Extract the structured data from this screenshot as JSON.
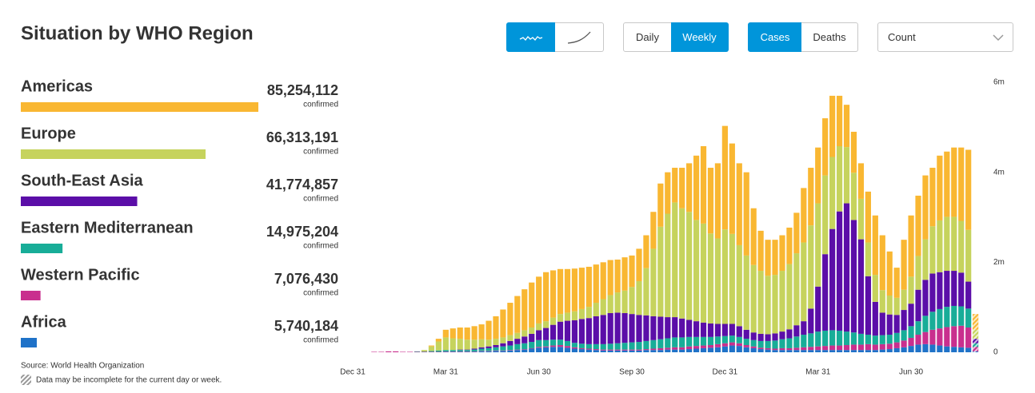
{
  "header": {
    "title": "Situation by WHO Region"
  },
  "controls": {
    "frequency": [
      "Daily",
      "Weekly"
    ],
    "frequency_selected": 1,
    "measure": [
      "Cases",
      "Deaths"
    ],
    "measure_selected": 0,
    "scale": "Count"
  },
  "footer": {
    "source": "Source: World Health Organization",
    "note": "Data may be incomplete for the current day or week."
  },
  "chart_data": {
    "type": "stacked-bar",
    "total_caption": "confirmed",
    "categories": [
      "Dec 31",
      null,
      null,
      null,
      null,
      null,
      null,
      null,
      null,
      null,
      null,
      null,
      null,
      "Mar 31",
      null,
      null,
      null,
      null,
      null,
      null,
      null,
      null,
      null,
      null,
      null,
      null,
      "Jun 30",
      null,
      null,
      null,
      null,
      null,
      null,
      null,
      null,
      null,
      null,
      null,
      null,
      "Sep 30",
      null,
      null,
      null,
      null,
      null,
      null,
      null,
      null,
      null,
      null,
      null,
      null,
      "Dec 31",
      null,
      null,
      null,
      null,
      null,
      null,
      null,
      null,
      null,
      null,
      null,
      null,
      "Mar 31",
      null,
      null,
      null,
      null,
      null,
      null,
      null,
      null,
      null,
      null,
      null,
      null,
      "Jun 30",
      null,
      null,
      null,
      null,
      null,
      null,
      null,
      null,
      null
    ],
    "ylim": [
      0,
      6
    ],
    "yticks": [
      0,
      {
        "value": 2,
        "label": "2m"
      },
      {
        "value": 4,
        "label": "4m"
      },
      {
        "value": 6,
        "label": "6m"
      }
    ],
    "series": [
      {
        "name": "Americas",
        "color": "#f9b732",
        "total": 85254112,
        "total_label": "85,254,112",
        "values": [
          0,
          0,
          0,
          0,
          0,
          0,
          0,
          0,
          0,
          0,
          0,
          0.02,
          0.06,
          0.17,
          0.22,
          0.25,
          0.27,
          0.3,
          0.33,
          0.42,
          0.5,
          0.62,
          0.72,
          0.82,
          0.91,
          1.0,
          1.04,
          1.09,
          1.05,
          1.0,
          0.97,
          0.95,
          0.92,
          0.89,
          0.85,
          0.82,
          0.78,
          0.73,
          0.74,
          0.7,
          0.72,
          0.73,
          0.82,
          0.96,
          0.92,
          0.77,
          0.9,
          1.08,
          1.43,
          1.72,
          1.46,
          1.67,
          2.3,
          2.01,
          1.82,
          1.85,
          1.26,
          0.89,
          0.8,
          0.78,
          0.79,
          0.81,
          0.9,
          1.21,
          1.28,
          1.24,
          1.27,
          1.36,
          1.12,
          0.94,
          0.91,
          0.79,
          1.13,
          1.32,
          1.22,
          0.98,
          0.67,
          1.11,
          1.36,
          1.34,
          1.42,
          1.3,
          1.44,
          1.45,
          1.54,
          1.63,
          1.78,
          0.35
        ]
      },
      {
        "name": "Europe",
        "color": "#c6d35d",
        "total": 66313191,
        "total_label": "66,313,191",
        "values": [
          0,
          0,
          0,
          0,
          0,
          0,
          0,
          0,
          0,
          0,
          0.03,
          0.1,
          0.2,
          0.28,
          0.26,
          0.24,
          0.22,
          0.2,
          0.18,
          0.15,
          0.14,
          0.13,
          0.13,
          0.13,
          0.14,
          0.14,
          0.15,
          0.15,
          0.16,
          0.17,
          0.18,
          0.2,
          0.22,
          0.25,
          0.3,
          0.35,
          0.4,
          0.45,
          0.5,
          0.6,
          0.75,
          1.05,
          1.5,
          2.0,
          2.3,
          2.55,
          2.45,
          2.4,
          2.25,
          2.2,
          2.0,
          1.9,
          2.1,
          2.0,
          1.8,
          1.65,
          1.5,
          1.4,
          1.3,
          1.3,
          1.35,
          1.45,
          1.6,
          1.75,
          1.85,
          1.85,
          1.75,
          1.6,
          1.45,
          1.25,
          1.05,
          0.9,
          0.75,
          0.6,
          0.5,
          0.42,
          0.38,
          0.45,
          0.6,
          0.75,
          0.9,
          1.05,
          1.15,
          1.2,
          1.2,
          1.15,
          1.15,
          0.2
        ]
      },
      {
        "name": "South-East Asia",
        "color": "#5b0ea8",
        "total": 41774857,
        "total_label": "41,774,857",
        "values": [
          0,
          0,
          0,
          0,
          0,
          0,
          0,
          0,
          0,
          0,
          0,
          0,
          0,
          0,
          0,
          0.01,
          0.01,
          0.02,
          0.03,
          0.04,
          0.05,
          0.07,
          0.1,
          0.12,
          0.15,
          0.18,
          0.22,
          0.27,
          0.33,
          0.4,
          0.45,
          0.5,
          0.55,
          0.58,
          0.62,
          0.65,
          0.68,
          0.68,
          0.66,
          0.63,
          0.6,
          0.57,
          0.53,
          0.5,
          0.47,
          0.45,
          0.42,
          0.38,
          0.35,
          0.32,
          0.3,
          0.28,
          0.27,
          0.26,
          0.24,
          0.2,
          0.17,
          0.16,
          0.15,
          0.16,
          0.17,
          0.2,
          0.25,
          0.3,
          0.55,
          1.0,
          1.7,
          2.25,
          2.65,
          2.85,
          2.5,
          2.1,
          1.3,
          0.75,
          0.5,
          0.45,
          0.4,
          0.45,
          0.5,
          0.7,
          0.8,
          0.85,
          0.82,
          0.8,
          0.78,
          0.75,
          0.6,
          0.1
        ]
      },
      {
        "name": "Eastern Mediterranean",
        "color": "#18ad98",
        "total": 14975204,
        "total_label": "14,975,204",
        "values": [
          0,
          0,
          0,
          0,
          0,
          0,
          0,
          0,
          0,
          0.01,
          0.01,
          0.02,
          0.03,
          0.03,
          0.03,
          0.03,
          0.03,
          0.04,
          0.05,
          0.06,
          0.07,
          0.09,
          0.1,
          0.12,
          0.13,
          0.14,
          0.15,
          0.14,
          0.13,
          0.12,
          0.11,
          0.1,
          0.1,
          0.1,
          0.11,
          0.12,
          0.13,
          0.14,
          0.15,
          0.16,
          0.17,
          0.18,
          0.19,
          0.2,
          0.21,
          0.22,
          0.22,
          0.21,
          0.2,
          0.19,
          0.18,
          0.17,
          0.16,
          0.15,
          0.14,
          0.14,
          0.14,
          0.15,
          0.16,
          0.18,
          0.2,
          0.22,
          0.25,
          0.28,
          0.3,
          0.33,
          0.34,
          0.34,
          0.33,
          0.3,
          0.27,
          0.24,
          0.21,
          0.2,
          0.2,
          0.2,
          0.21,
          0.23,
          0.26,
          0.3,
          0.36,
          0.4,
          0.43,
          0.45,
          0.45,
          0.43,
          0.42,
          0.08
        ]
      },
      {
        "name": "Western Pacific",
        "color": "#c92f8e",
        "total": 7076430,
        "total_label": "7,076,430",
        "values": [
          0,
          0,
          0,
          0.01,
          0.01,
          0.02,
          0.02,
          0.01,
          0.01,
          0.01,
          0.01,
          0.01,
          0.01,
          0.01,
          0.01,
          0.01,
          0.01,
          0.01,
          0.01,
          0.01,
          0.01,
          0.01,
          0.01,
          0.01,
          0.01,
          0.01,
          0.02,
          0.02,
          0.03,
          0.04,
          0.04,
          0.03,
          0.02,
          0.02,
          0.02,
          0.02,
          0.02,
          0.02,
          0.02,
          0.02,
          0.02,
          0.02,
          0.03,
          0.04,
          0.04,
          0.05,
          0.05,
          0.06,
          0.06,
          0.06,
          0.06,
          0.07,
          0.07,
          0.07,
          0.06,
          0.05,
          0.04,
          0.03,
          0.03,
          0.03,
          0.04,
          0.04,
          0.05,
          0.06,
          0.07,
          0.08,
          0.09,
          0.1,
          0.1,
          0.11,
          0.12,
          0.12,
          0.13,
          0.12,
          0.12,
          0.12,
          0.13,
          0.15,
          0.18,
          0.22,
          0.27,
          0.33,
          0.38,
          0.43,
          0.46,
          0.48,
          0.45,
          0.1
        ]
      },
      {
        "name": "Africa",
        "color": "#1f72c8",
        "total": 5740184,
        "total_label": "5,740,184",
        "values": [
          0,
          0,
          0,
          0,
          0,
          0,
          0,
          0,
          0,
          0,
          0,
          0,
          0,
          0.01,
          0.01,
          0.01,
          0.01,
          0.01,
          0.02,
          0.02,
          0.03,
          0.03,
          0.04,
          0.05,
          0.06,
          0.08,
          0.1,
          0.11,
          0.12,
          0.12,
          0.1,
          0.08,
          0.07,
          0.06,
          0.05,
          0.04,
          0.04,
          0.04,
          0.04,
          0.04,
          0.04,
          0.05,
          0.05,
          0.05,
          0.06,
          0.06,
          0.06,
          0.07,
          0.08,
          0.09,
          0.1,
          0.11,
          0.13,
          0.15,
          0.14,
          0.11,
          0.09,
          0.07,
          0.06,
          0.05,
          0.05,
          0.05,
          0.05,
          0.05,
          0.05,
          0.05,
          0.05,
          0.05,
          0.05,
          0.05,
          0.05,
          0.05,
          0.05,
          0.05,
          0.06,
          0.07,
          0.09,
          0.11,
          0.14,
          0.17,
          0.18,
          0.17,
          0.15,
          0.13,
          0.12,
          0.11,
          0.1,
          0.02
        ]
      }
    ]
  }
}
